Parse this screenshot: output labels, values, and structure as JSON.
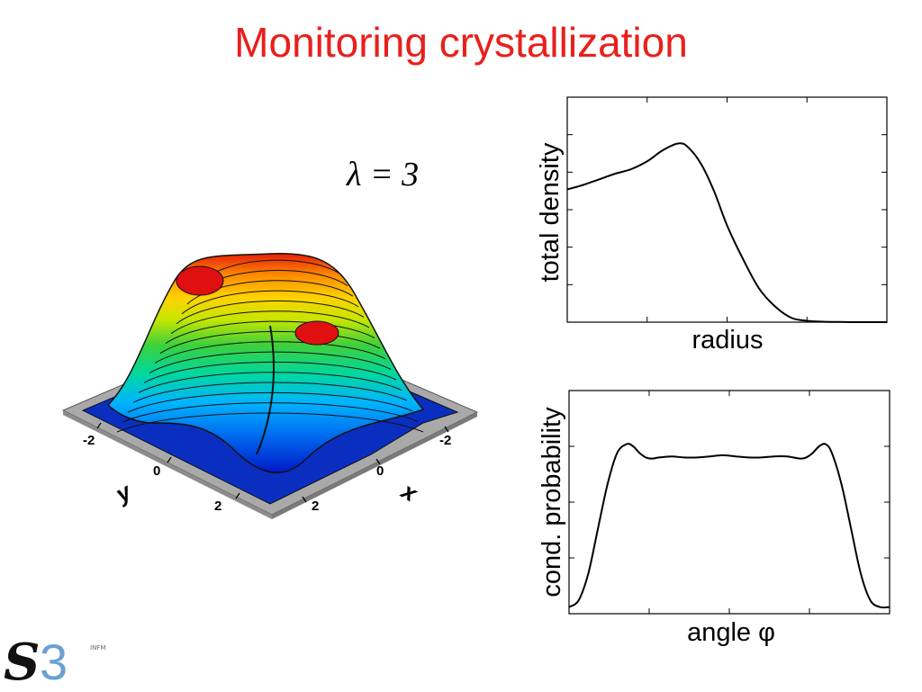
{
  "slide": {
    "title": "Monitoring crystallization",
    "parameter_label": "λ = 3"
  },
  "surface_plot": {
    "x_axis_label": "x",
    "y_axis_label": "y",
    "x_ticks": [
      "-2",
      "0",
      "2"
    ],
    "y_ticks": [
      "-2",
      "0",
      "2"
    ],
    "colormap": [
      "#0018c8",
      "#00b4ff",
      "#00d8a0",
      "#3cd03c",
      "#c8e600",
      "#ffd200",
      "#ff8c00",
      "#e61e0a"
    ]
  },
  "chart_data": [
    {
      "type": "line",
      "xlabel": "radius",
      "ylabel": "total density",
      "xlim": [
        0,
        1
      ],
      "ylim": [
        0,
        1
      ],
      "x": [
        0,
        0.05,
        0.1,
        0.15,
        0.2,
        0.25,
        0.3,
        0.35,
        0.38,
        0.42,
        0.46,
        0.5,
        0.55,
        0.6,
        0.65,
        0.7,
        0.75,
        0.8,
        0.85,
        0.9,
        0.95,
        1.0
      ],
      "y": [
        0.59,
        0.61,
        0.635,
        0.66,
        0.68,
        0.715,
        0.765,
        0.795,
        0.775,
        0.7,
        0.58,
        0.43,
        0.28,
        0.15,
        0.07,
        0.02,
        0.006,
        0.002,
        0.001,
        0.0,
        0.0,
        0.0
      ]
    },
    {
      "type": "line",
      "xlabel": "angle φ",
      "ylabel": "cond. probability",
      "xlim": [
        0,
        1
      ],
      "ylim": [
        0,
        1
      ],
      "x": [
        0,
        0.03,
        0.06,
        0.09,
        0.12,
        0.15,
        0.18,
        0.2,
        0.22,
        0.24,
        0.26,
        0.28,
        0.32,
        0.36,
        0.4,
        0.44,
        0.48,
        0.52,
        0.56,
        0.6,
        0.64,
        0.68,
        0.72,
        0.74,
        0.76,
        0.78,
        0.8,
        0.82,
        0.85,
        0.88,
        0.91,
        0.94,
        0.97,
        1.0
      ],
      "y": [
        0.03,
        0.06,
        0.18,
        0.38,
        0.58,
        0.72,
        0.76,
        0.75,
        0.72,
        0.7,
        0.695,
        0.7,
        0.705,
        0.7,
        0.7,
        0.705,
        0.71,
        0.705,
        0.7,
        0.7,
        0.705,
        0.705,
        0.695,
        0.7,
        0.72,
        0.75,
        0.76,
        0.72,
        0.58,
        0.38,
        0.18,
        0.06,
        0.03,
        0.03
      ]
    }
  ]
}
